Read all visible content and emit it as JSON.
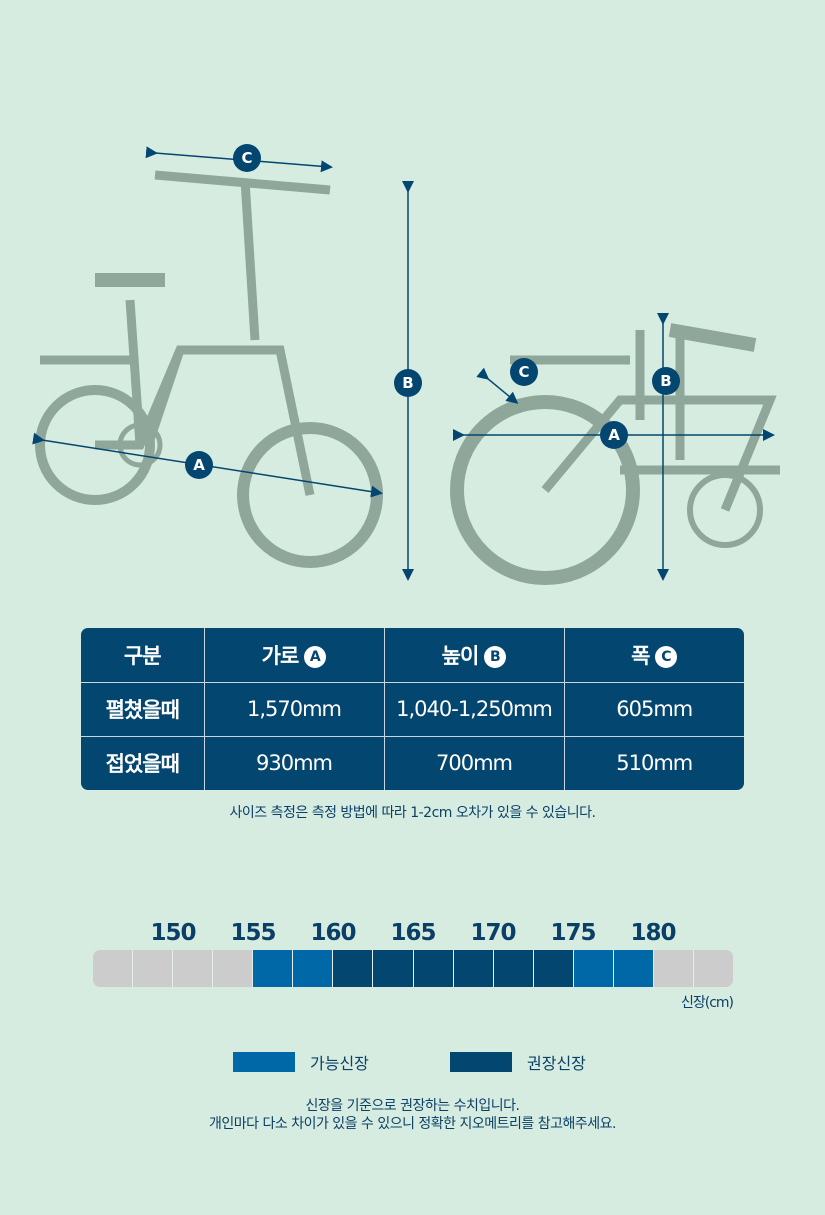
{
  "colors": {
    "background": "#d7ece1",
    "navy": "#03466f",
    "blue": "#0068a6",
    "gray": "#cccccc",
    "bike": "#8fa69a"
  },
  "diagram": {
    "badges": {
      "a": "A",
      "b": "B",
      "c": "C"
    }
  },
  "table": {
    "headers": [
      "구분",
      "가로",
      "높이",
      "폭"
    ],
    "header_badges": [
      "",
      "A",
      "B",
      "C"
    ],
    "rows": [
      {
        "label": "펼쳤을때",
        "values": [
          "1,570mm",
          "1,040-1,250mm",
          "605mm"
        ]
      },
      {
        "label": "접었을때",
        "values": [
          "930mm",
          "700mm",
          "510mm"
        ]
      }
    ]
  },
  "size_note": "사이즈 측정은 측정 방법에 따라 1-2cm 오차가 있을 수 있습니다.",
  "height_chart": {
    "ticks": [
      "150",
      "155",
      "160",
      "165",
      "170",
      "175",
      "180"
    ],
    "cells": [
      "none",
      "none",
      "none",
      "none",
      "possible",
      "possible",
      "recommended",
      "recommended",
      "recommended",
      "recommended",
      "recommended",
      "recommended",
      "possible",
      "possible",
      "none",
      "none"
    ],
    "unit_label": "신장(cm)",
    "legend": {
      "possible": "가능신장",
      "recommended": "권장신장"
    }
  },
  "footer": {
    "line1": "신장을 기준으로 권장하는 수치입니다.",
    "line2": "개인마다 다소 차이가 있을 수 있으니 정확한 지오메트리를 참고해주세요."
  }
}
